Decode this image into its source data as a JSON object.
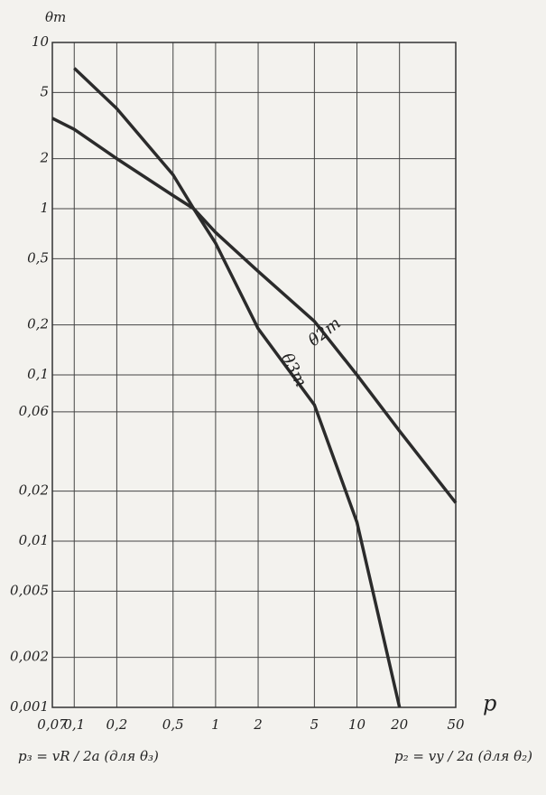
{
  "chart_data": {
    "type": "line",
    "y_label": "θm",
    "x_label": "p",
    "x": [
      0.07,
      0.1,
      0.2,
      0.5,
      0.7,
      1,
      2,
      5,
      10,
      20,
      50
    ],
    "series": [
      {
        "name": "θ2m",
        "color": "#2b2b2b",
        "values": [
          3.5,
          3.0,
          2.0,
          1.2,
          1.0,
          0.72,
          0.42,
          0.21,
          0.1,
          0.046,
          0.017
        ]
      },
      {
        "name": "θ3m",
        "color": "#2b2b2b",
        "values": [
          null,
          7,
          4,
          1.6,
          1.0,
          0.62,
          0.19,
          0.066,
          0.013,
          0.001,
          null
        ]
      }
    ],
    "xlog": true,
    "ylog": true,
    "xlim": [
      0.07,
      50
    ],
    "ylim": [
      0.001,
      10
    ],
    "xticks": [
      {
        "value": 0.07,
        "label": "0,07"
      },
      {
        "value": 0.1,
        "label": "0,1"
      },
      {
        "value": 0.2,
        "label": "0,2"
      },
      {
        "value": 0.5,
        "label": "0,5"
      },
      1,
      2,
      5,
      10,
      20,
      50
    ],
    "yticks": [
      10,
      5,
      2,
      1,
      {
        "value": 0.5,
        "label": "0,5"
      },
      {
        "value": 0.2,
        "label": "0,2"
      },
      {
        "value": 0.1,
        "label": "0,1"
      },
      {
        "value": 0.06,
        "label": "0,06"
      },
      {
        "value": 0.02,
        "label": "0,02"
      },
      {
        "value": 0.01,
        "label": "0,01"
      },
      {
        "value": 0.005,
        "label": "0,005"
      },
      {
        "value": 0.002,
        "label": "0,002"
      },
      {
        "value": 0.001,
        "label": "0,001"
      }
    ],
    "grid": true,
    "formulas": [
      "p₃ = vR / 2a   (для θ₃)",
      "p₂ = vy / 2a   (для θ₂)"
    ]
  }
}
